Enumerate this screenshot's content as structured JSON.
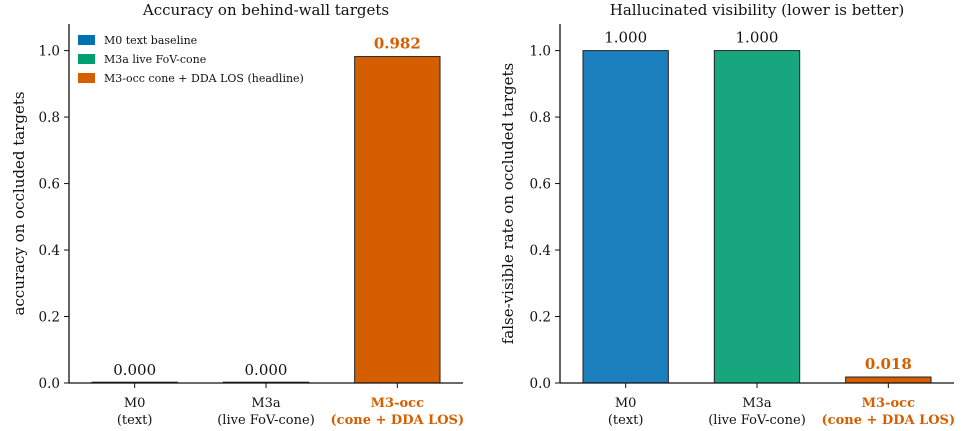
{
  "chart_data": [
    {
      "type": "bar",
      "title": "Accuracy on behind-wall targets",
      "ylabel": "accuracy on occluded targets",
      "ylim": [
        0,
        1.08
      ],
      "yticks": [
        "0.0",
        "0.2",
        "0.4",
        "0.6",
        "0.8",
        "1.0"
      ],
      "categories": [
        {
          "line1": "M0",
          "line2": "(text)",
          "highlight": false
        },
        {
          "line1": "M3a",
          "line2": "(live FoV-cone)",
          "highlight": false
        },
        {
          "line1": "M3-occ",
          "line2": "(cone + DDA LOS)",
          "highlight": true
        }
      ],
      "values": [
        0.0,
        0.0,
        0.982
      ],
      "value_labels": [
        "0.000",
        "0.000",
        "0.982"
      ],
      "colors": [
        "#0072b2",
        "#009e73",
        "#d55e00"
      ],
      "legend": {
        "position": "top-left",
        "entries": [
          {
            "label": "M0 text baseline",
            "color": "#0072b2"
          },
          {
            "label": "M3a live FoV-cone",
            "color": "#009e73"
          },
          {
            "label": "M3-occ cone + DDA LOS (headline)",
            "color": "#d55e00"
          }
        ]
      },
      "grid": false
    },
    {
      "type": "bar",
      "title": "Hallucinated visibility (lower is better)",
      "ylabel": "false-visible rate on occluded targets",
      "ylim": [
        0,
        1.08
      ],
      "yticks": [
        "0.0",
        "0.2",
        "0.4",
        "0.6",
        "0.8",
        "1.0"
      ],
      "categories": [
        {
          "line1": "M0",
          "line2": "(text)",
          "highlight": false
        },
        {
          "line1": "M3a",
          "line2": "(live FoV-cone)",
          "highlight": false
        },
        {
          "line1": "M3-occ",
          "line2": "(cone + DDA LOS)",
          "highlight": true
        }
      ],
      "values": [
        1.0,
        1.0,
        0.018
      ],
      "value_labels": [
        "1.000",
        "1.000",
        "0.018"
      ],
      "colors": [
        "#1a7fbc",
        "#17a67d",
        "#d55e00"
      ],
      "grid": false
    }
  ]
}
